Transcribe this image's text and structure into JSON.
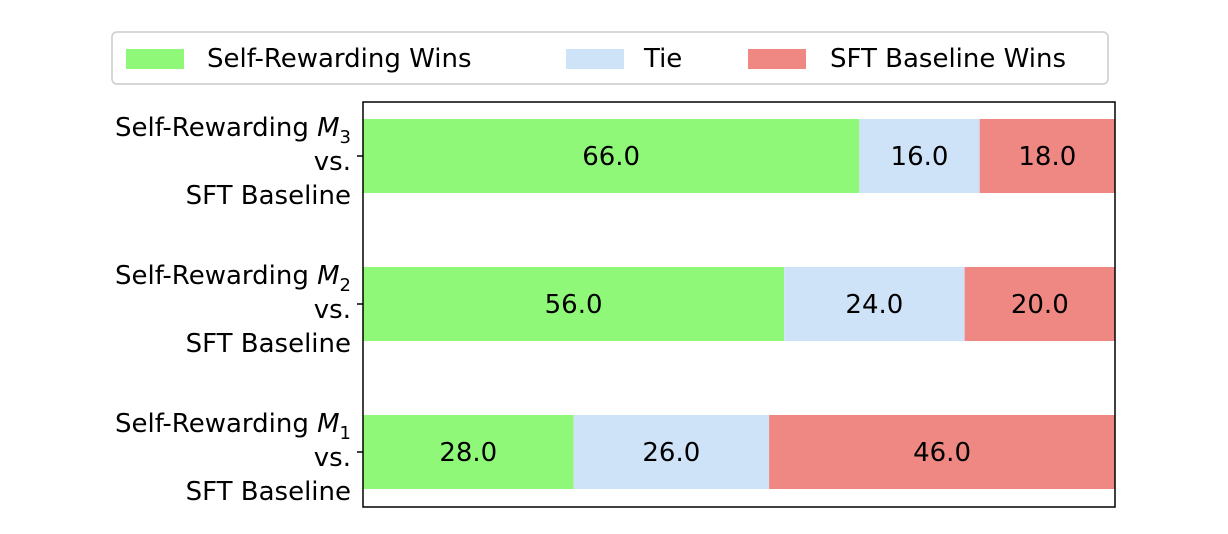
{
  "chart_data": {
    "type": "bar",
    "orientation": "horizontal",
    "stacked": true,
    "categories": [
      {
        "line1": "Self-Rewarding",
        "model": "M",
        "subscript": "3",
        "line2": "vs.",
        "line3": "SFT Baseline"
      },
      {
        "line1": "Self-Rewarding",
        "model": "M",
        "subscript": "2",
        "line2": "vs.",
        "line3": "SFT Baseline"
      },
      {
        "line1": "Self-Rewarding",
        "model": "M",
        "subscript": "1",
        "line2": "vs.",
        "line3": "SFT Baseline"
      }
    ],
    "series": [
      {
        "name": "Self-Rewarding Wins",
        "color": "#90f878",
        "values": [
          66.0,
          56.0,
          28.0
        ],
        "labels": [
          "66.0",
          "56.0",
          "28.0"
        ]
      },
      {
        "name": "Tie",
        "color": "#cfe3f8",
        "values": [
          16.0,
          24.0,
          26.0
        ],
        "labels": [
          "16.0",
          "24.0",
          "26.0"
        ]
      },
      {
        "name": "SFT Baseline Wins",
        "color": "#ef8882",
        "values": [
          18.0,
          20.0,
          46.0
        ],
        "labels": [
          "18.0",
          "20.0",
          "46.0"
        ]
      }
    ],
    "xlim": [
      0,
      100
    ],
    "legend": "top",
    "grid": false,
    "title": "",
    "xlabel": "",
    "ylabel": ""
  }
}
